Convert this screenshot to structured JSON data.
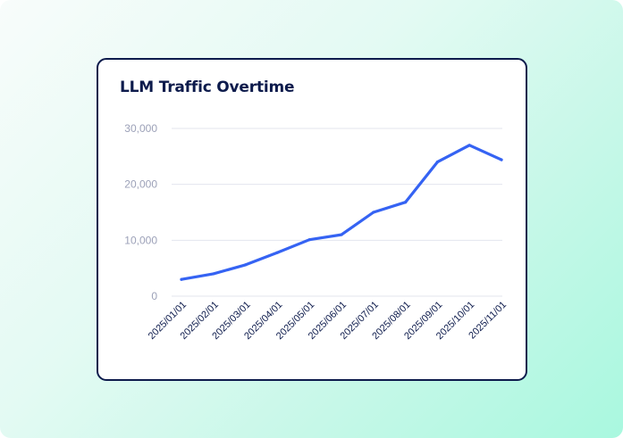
{
  "chart_data": {
    "type": "line",
    "title": "LLM Traffic Overtime",
    "xlabel": "",
    "ylabel": "",
    "ylim": [
      0,
      30000
    ],
    "yticks": [
      0,
      10000,
      20000,
      30000
    ],
    "ytick_labels": [
      "0",
      "10,000",
      "20,000",
      "30,000"
    ],
    "grid": true,
    "legend": "none",
    "categories": [
      "2025/01/01",
      "2025/02/01",
      "2025/03/01",
      "2025/04/01",
      "2025/05/01",
      "2025/06/01",
      "2025/07/01",
      "2025/08/01",
      "2025/09/01",
      "2025/10/01",
      "2025/11/01"
    ],
    "series": [
      {
        "name": "LLM Traffic",
        "color": "#3563f3",
        "values": [
          3000,
          4000,
          5600,
          7800,
          10100,
          11000,
          15000,
          16800,
          24000,
          27000,
          24400
        ]
      }
    ]
  }
}
